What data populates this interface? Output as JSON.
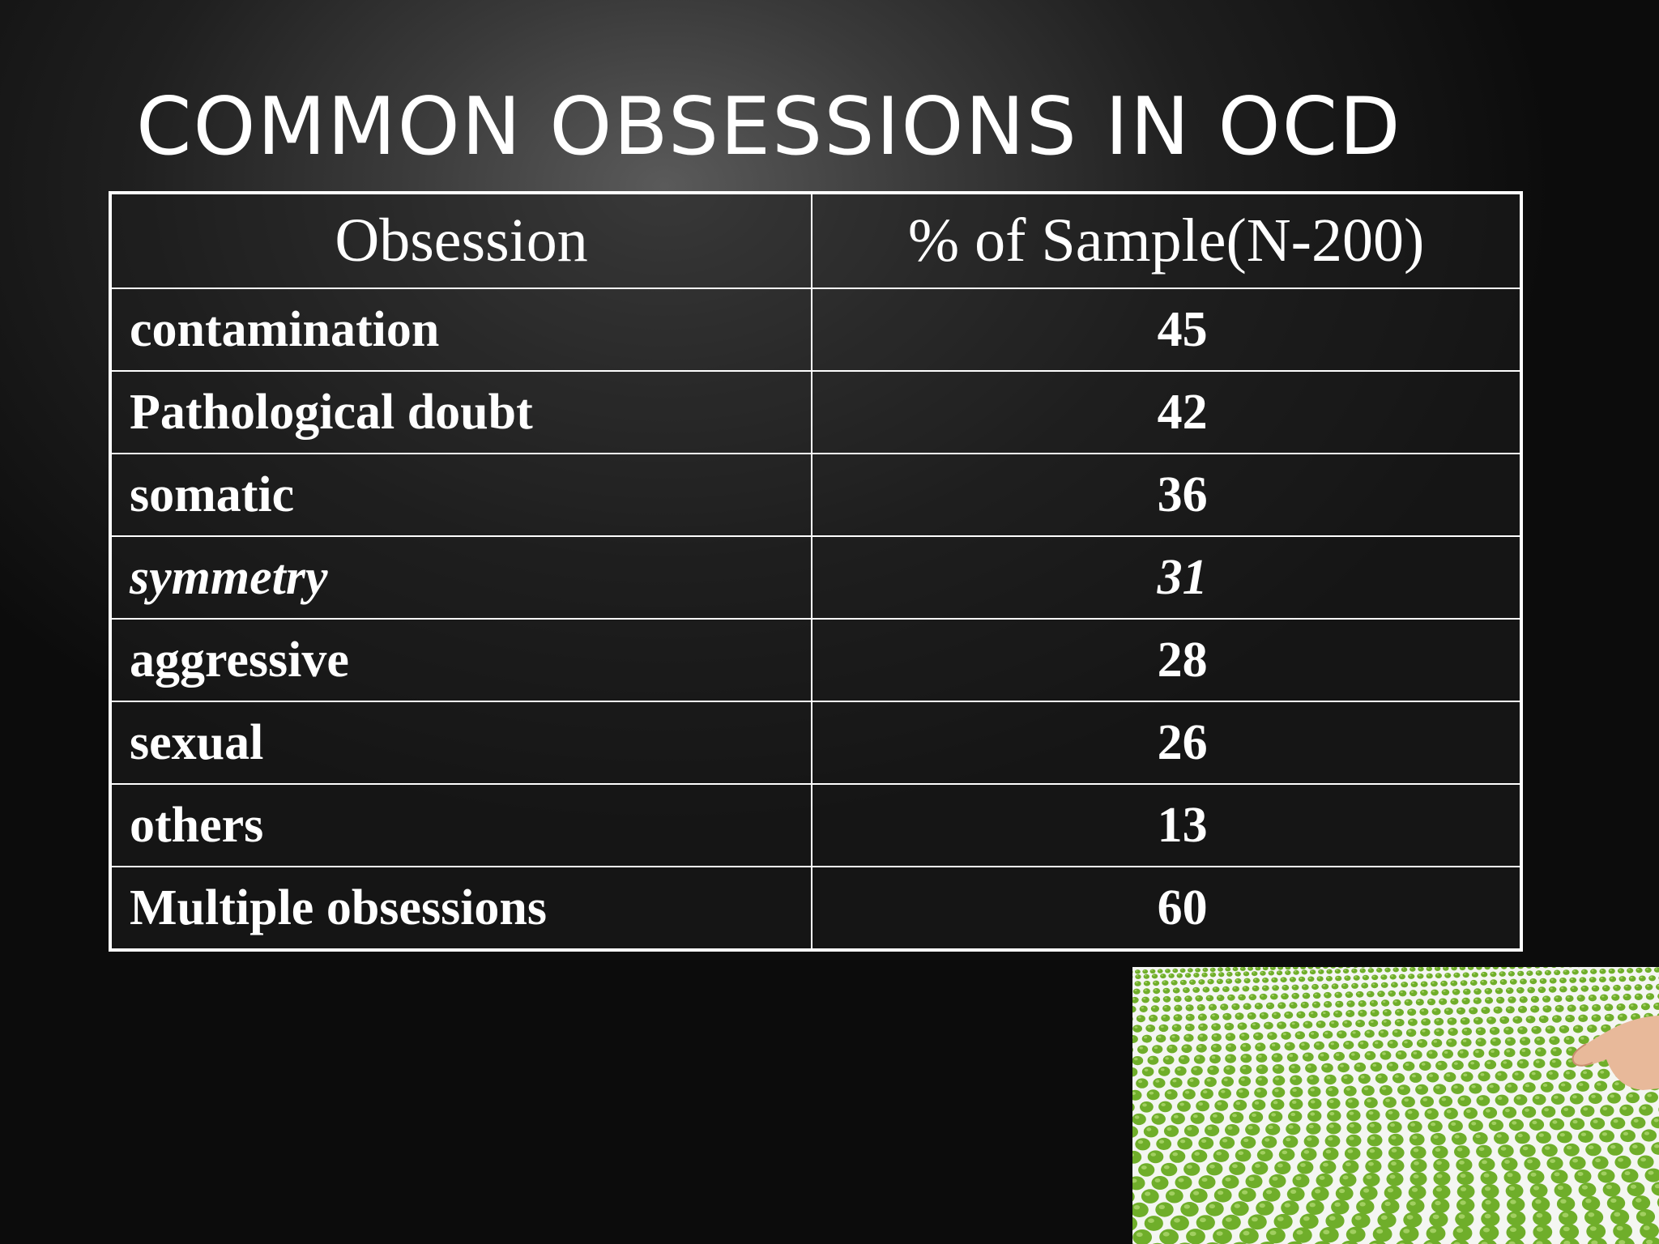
{
  "slide": {
    "title": "COMMON OBSESSIONS IN OCD"
  },
  "table": {
    "headers": [
      "Obsession",
      "% of Sample(N-200)"
    ],
    "rows": [
      {
        "obsession": "contamination",
        "percent": "45"
      },
      {
        "obsession": "Pathological doubt",
        "percent": "42"
      },
      {
        "obsession": "somatic",
        "percent": "36"
      },
      {
        "obsession": "symmetry",
        "percent": "31"
      },
      {
        "obsession": "aggressive",
        "percent": "28"
      },
      {
        "obsession": "sexual",
        "percent": "26"
      },
      {
        "obsession": "others",
        "percent": "13"
      },
      {
        "obsession": "Multiple obsessions",
        "percent": "60"
      }
    ]
  },
  "photo": {
    "icon": "peas-in-rows-photo",
    "pea_color": "#6fae2a",
    "background_color": "#f4f6f2"
  }
}
